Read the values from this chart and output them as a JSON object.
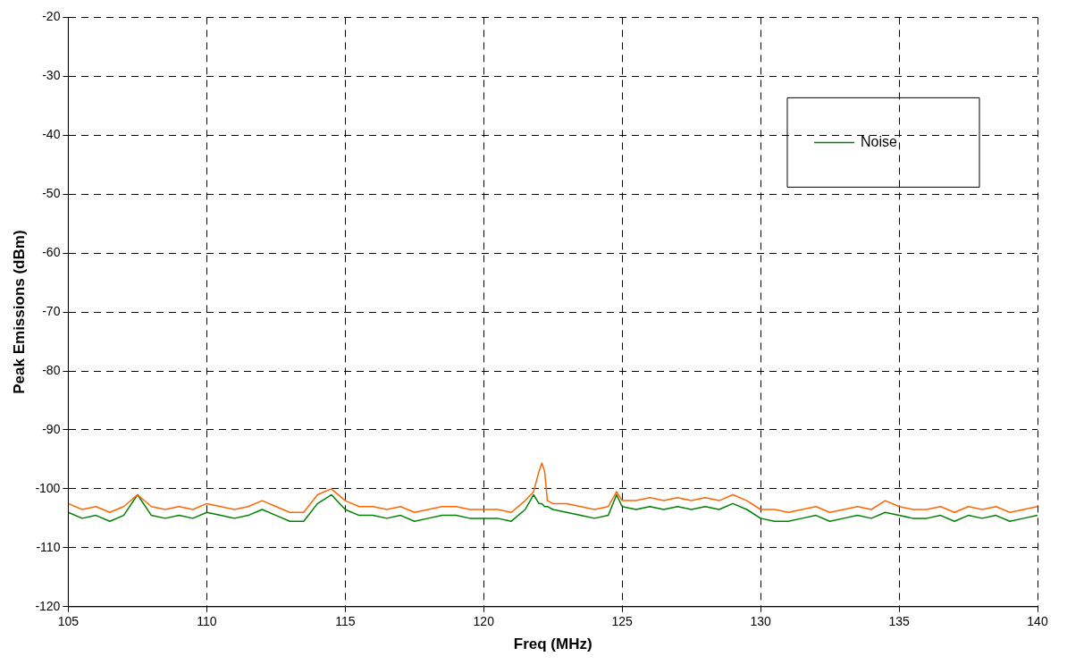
{
  "chart_data": {
    "type": "line",
    "xlabel": "Freq (MHz)",
    "ylabel": "Peak Emissions (dBm)",
    "xlim": [
      105,
      140
    ],
    "xticks": [
      105,
      110,
      115,
      120,
      125,
      130,
      135,
      140
    ],
    "ylim": [
      -120,
      -20
    ],
    "yticks": [
      -120,
      -110,
      -100,
      -90,
      -80,
      -70,
      -60,
      -50,
      -40,
      -30,
      -20
    ],
    "grid": true,
    "legend": "top right",
    "marker": "none",
    "x": [
      105,
      105.5,
      106,
      106.5,
      107,
      107.5,
      108,
      108.5,
      109,
      109.5,
      110,
      110.5,
      111,
      111.5,
      112,
      112.5,
      113,
      113.5,
      114,
      114.5,
      115,
      115.5,
      116,
      116.5,
      117,
      117.5,
      118,
      118.5,
      119,
      119.5,
      120,
      120.5,
      121,
      121.5,
      121.8,
      122,
      122.1,
      122.2,
      122.3,
      122.5,
      123,
      123.5,
      124,
      124.5,
      124.8,
      125,
      125.5,
      126,
      126.5,
      127,
      127.5,
      128,
      128.5,
      129,
      129.5,
      130,
      130.5,
      131,
      131.5,
      132,
      132.5,
      133,
      133.5,
      134,
      134.5,
      135,
      135.5,
      136,
      136.5,
      137,
      137.5,
      138,
      138.5,
      139,
      139.5,
      140
    ],
    "series": [
      {
        "color": "#ff6600",
        "values": [
          -102.5,
          -103.5,
          -103,
          -104,
          -103,
          -101,
          -103,
          -103.5,
          -103,
          -103.5,
          -102.5,
          -103,
          -103.5,
          -103,
          -102,
          -103,
          -104,
          -104,
          -101,
          -100,
          -102,
          -103,
          -103,
          -103.5,
          -103,
          -104,
          -103.5,
          -103,
          -103,
          -103.5,
          -103.5,
          -103.5,
          -104,
          -102,
          -100.5,
          -97,
          -95.6,
          -97,
          -102,
          -102.5,
          -102.5,
          -103,
          -103.5,
          -103,
          -100.5,
          -102,
          -102,
          -101.5,
          -102,
          -101.5,
          -102,
          -101.5,
          -102,
          -101,
          -102,
          -103.5,
          -103.5,
          -104,
          -103.5,
          -103,
          -104,
          -103.5,
          -103,
          -103.5,
          -102,
          -103,
          -103.5,
          -103.5,
          -103,
          -104,
          -103,
          -103.5,
          -103,
          -104,
          -103.5,
          -103
        ]
      },
      {
        "name": "Noise",
        "color": "#008000",
        "values": [
          -104,
          -105,
          -104.5,
          -105.5,
          -104.5,
          -101,
          -104.5,
          -105,
          -104.5,
          -105,
          -104,
          -104.5,
          -105,
          -104.5,
          -103.5,
          -104.5,
          -105.5,
          -105.5,
          -102.5,
          -101,
          -103.5,
          -104.5,
          -104.5,
          -105,
          -104.5,
          -105.5,
          -105,
          -104.5,
          -104.5,
          -105,
          -105,
          -105,
          -105.5,
          -103.5,
          -101,
          -102.5,
          -102.5,
          -103,
          -103,
          -103.5,
          -104,
          -104.5,
          -105,
          -104.5,
          -101,
          -103,
          -103.5,
          -103,
          -103.5,
          -103,
          -103.5,
          -103,
          -103.5,
          -102.5,
          -103.5,
          -105,
          -105.5,
          -105.5,
          -105,
          -104.5,
          -105.5,
          -105,
          -104.5,
          -105,
          -104,
          -104.5,
          -105,
          -105,
          -104.5,
          -105.5,
          -104.5,
          -105,
          -104.5,
          -105.5,
          -105,
          -104.5
        ]
      }
    ]
  }
}
